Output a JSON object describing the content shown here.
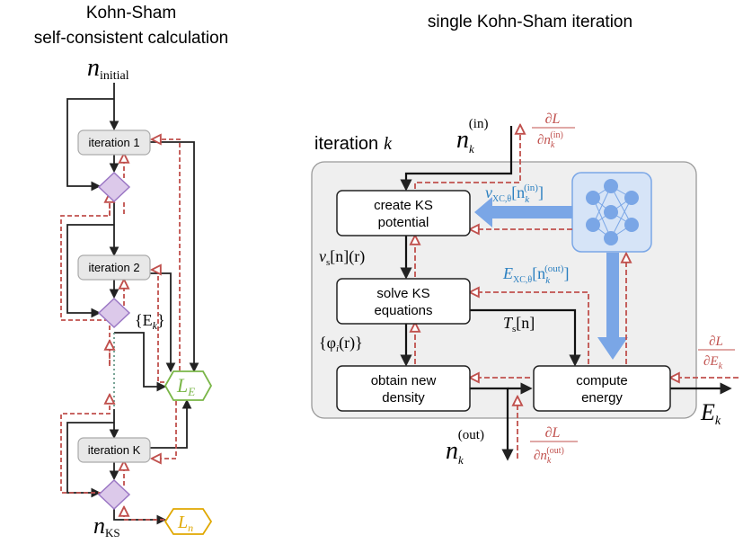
{
  "left": {
    "title_line1": "Kohn-Sham",
    "title_line2": "self-consistent calculation",
    "n_initial": "initial",
    "iterations": [
      "iteration 1",
      "iteration 2",
      "iteration K"
    ],
    "E_k_label": "{E",
    "E_k_sub": "k",
    "E_k_close": "}",
    "L_E": "L",
    "L_E_sub": "E",
    "L_n": "L",
    "L_n_sub": "n",
    "n_KS": "n",
    "n_KS_sub": "KS"
  },
  "right": {
    "title": "single Kohn-Sham iteration",
    "iteration_label": "iteration",
    "iteration_k": "k",
    "boxes": {
      "create_1": "create KS",
      "create_2": "potential",
      "solve_1": "solve KS",
      "solve_2": "equations",
      "obtain_1": "obtain new",
      "obtain_2": "density",
      "compute_1": "compute",
      "compute_2": "energy"
    },
    "n_in": "n",
    "n_in_sub": "k",
    "n_in_sup": "(in)",
    "dL_dnin_num": "∂L",
    "dL_dnin_den": "∂n",
    "vs_label": "v",
    "vs_sub": "s",
    "vs_rest": "[n](r)",
    "phi_label": "{φ",
    "phi_sub": "i",
    "phi_rest": "(r)}",
    "Ts_label": "T",
    "Ts_sub": "s",
    "Ts_rest": "[n]",
    "vxc_label": "v",
    "vxc_sub": "XC,θ",
    "vxc_rest": "[n",
    "vxc_sup": "(in)",
    "exc_label": "E",
    "exc_sub": "XC,θ",
    "exc_rest": "[n",
    "exc_sup": "(out)",
    "n_out": "n",
    "n_out_sub": "k",
    "n_out_sup": "(out)",
    "dL_dnout_num": "∂L",
    "dL_dnout_den": "∂n",
    "dL_dE_num": "∂L",
    "dL_dE_den": "∂E",
    "E_k": "E",
    "E_k_sub": "k"
  },
  "colors": {
    "gradient": "#c0504d",
    "blue": "#7aa6e6",
    "blue_text": "#2a7fc0",
    "green": "#7ab648",
    "gold": "#e0a800",
    "diamond_fill": "#dcc9ea",
    "diamond_stroke": "#9b77c4",
    "panel": "#efefef"
  }
}
